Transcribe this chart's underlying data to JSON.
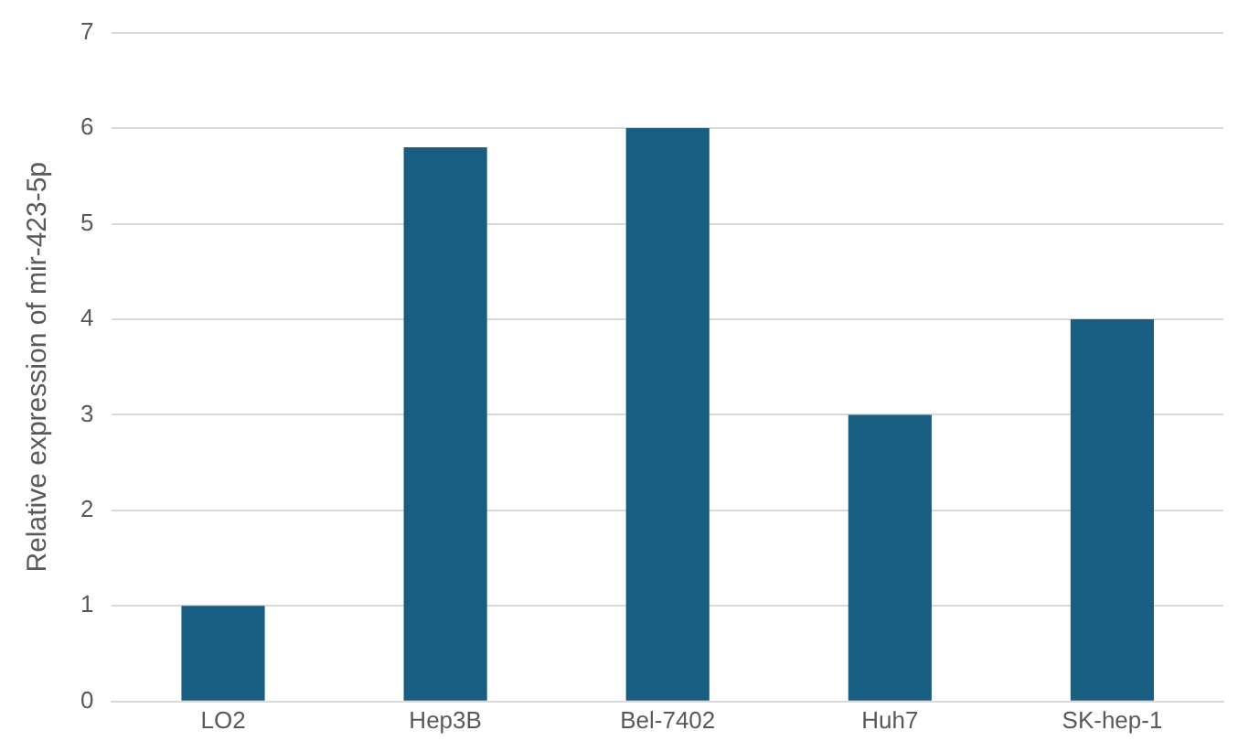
{
  "chart_data": {
    "type": "bar",
    "ylabel": "Relative expression of mir-423-5p",
    "categories": [
      "LO2",
      "Hep3B",
      "Bel-7402",
      "Huh7",
      "SK-hep-1"
    ],
    "values": [
      1,
      5.8,
      6,
      3,
      4
    ],
    "color": "#175e80",
    "ylim": [
      0,
      7
    ],
    "yticks": [
      0,
      1,
      2,
      3,
      4,
      5,
      6,
      7
    ],
    "grid": "y",
    "legend": false
  }
}
